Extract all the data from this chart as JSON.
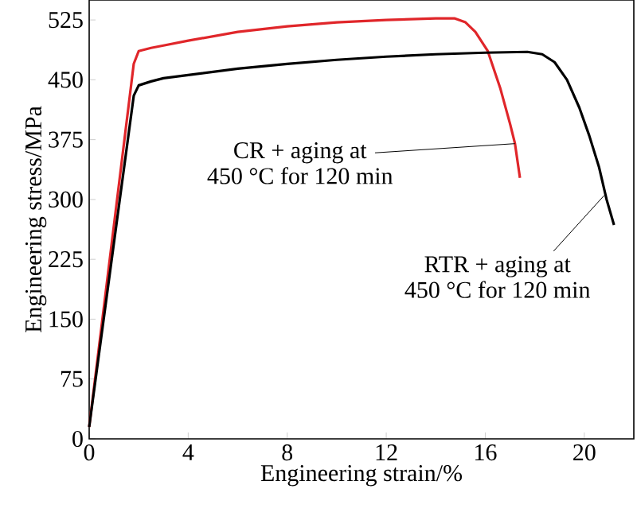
{
  "chart_data": {
    "type": "line",
    "xlabel": "Engineering strain/%",
    "ylabel": "Engineering stress/MPa",
    "xlim": [
      0,
      22
    ],
    "xticks": [
      0,
      4,
      8,
      12,
      16,
      20
    ],
    "ylim": [
      0,
      550
    ],
    "yticks": [
      0,
      75,
      150,
      225,
      300,
      375,
      450,
      525
    ],
    "grid": false,
    "marker": "none",
    "line_style": "solid",
    "series": [
      {
        "color": "#e0262a",
        "x": [
          0,
          1.8,
          2.0,
          2.5,
          3,
          4,
          6,
          8,
          10,
          12,
          14,
          14.75,
          15.2,
          15.6,
          16.1,
          16.6,
          17.0,
          17.2,
          17.4
        ],
        "values": [
          15,
          470,
          486,
          490,
          493,
          499,
          510,
          517,
          522,
          525,
          527,
          527,
          522,
          510,
          486,
          440,
          395,
          370,
          327
        ]
      },
      {
        "color": "#000000",
        "x": [
          0,
          1.8,
          2.0,
          2.5,
          3,
          4,
          6,
          8,
          10,
          12,
          14,
          16,
          17.7,
          18.3,
          18.8,
          19.3,
          19.8,
          20.2,
          20.6,
          20.9,
          21.2
        ],
        "values": [
          15,
          430,
          443,
          448,
          452,
          456,
          464,
          470,
          475,
          479,
          482,
          484,
          485,
          482,
          472,
          450,
          415,
          380,
          340,
          300,
          268
        ]
      }
    ],
    "annotations": [
      {
        "text": "CR + aging at",
        "x": 17.2,
        "y": 370
      },
      "450 °C for 120 min",
      {
        "text": "RTR + aging at",
        "x": 20.8,
        "y": 305
      },
      "450 °C for 120 min"
    ]
  }
}
